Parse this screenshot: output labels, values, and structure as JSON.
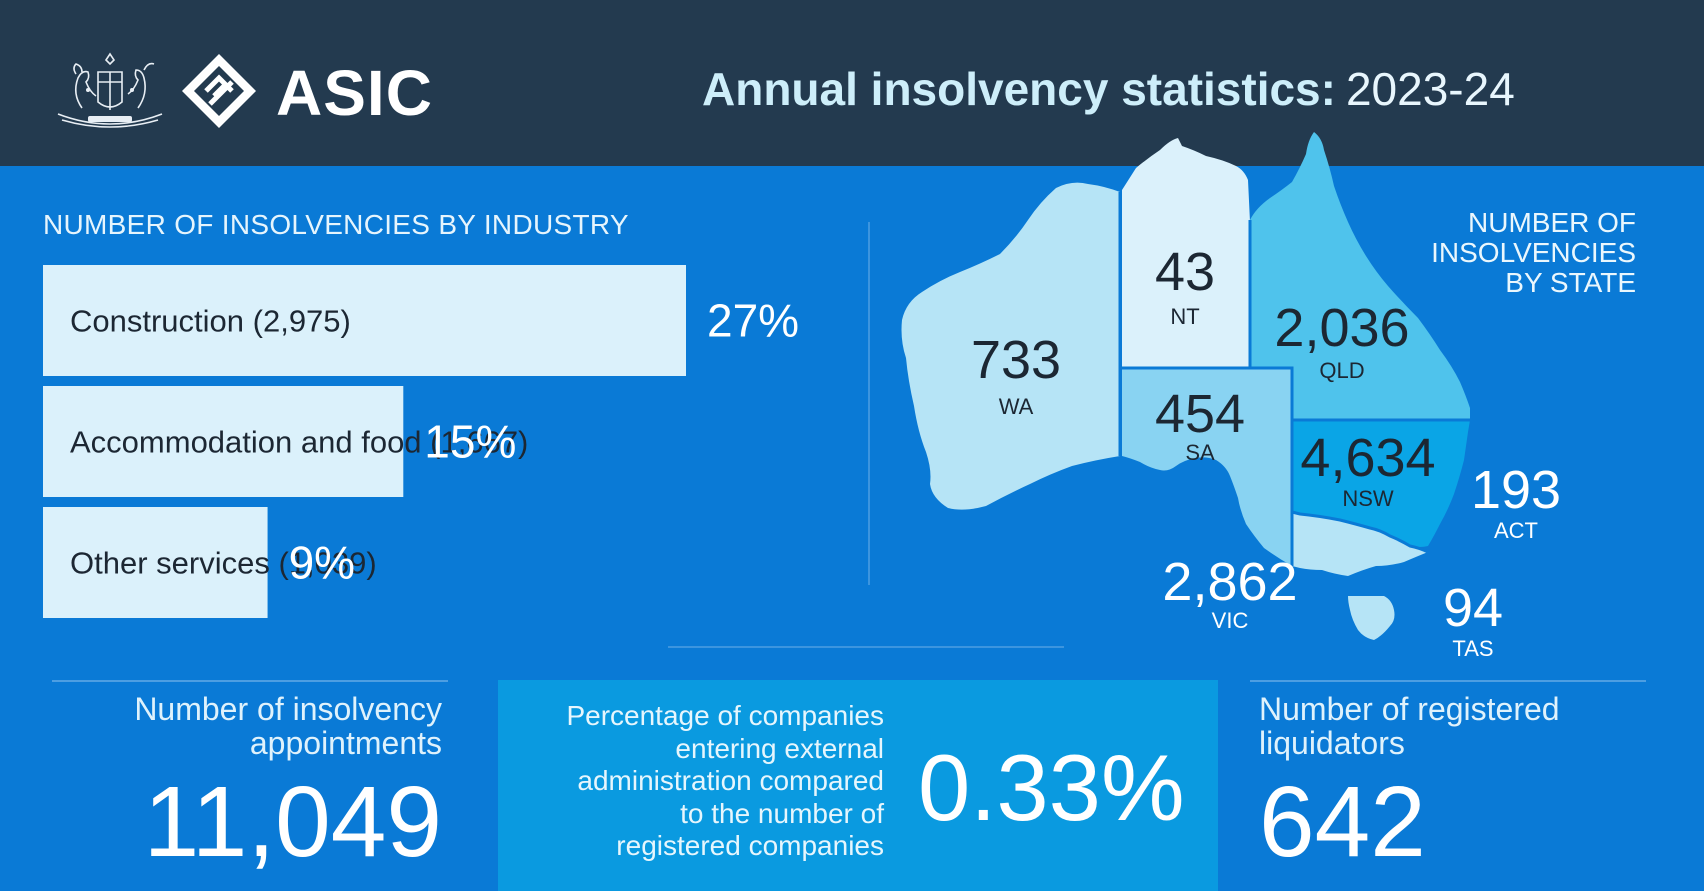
{
  "header": {
    "logo_text": "ASIC",
    "title_strong": "Annual insolvency statistics:",
    "title_year": "2023-24"
  },
  "colors": {
    "header_bg": "#233a4f",
    "main_bg": "#0a7ad6",
    "bar_fill": "#dbf1fb",
    "highlight_box": "#0a9ae0",
    "wa": "#b6e4f6",
    "nt": "#dbf1fb",
    "qld": "#4fc3ec",
    "sa": "#89d3f2",
    "nsw": "#0aa5e6",
    "vic": "#b6e4f6",
    "tas": "#b6e4f6"
  },
  "industry": {
    "heading": "NUMBER OF INSOLVENCIES BY INDUSTRY"
  },
  "states": {
    "heading_lines": [
      "NUMBER OF",
      "INSOLVENCIES",
      "BY STATE"
    ]
  },
  "stats": {
    "appointments_label": [
      "Number of insolvency",
      "appointments"
    ],
    "appointments_value": "11,049",
    "percentage_label": [
      "Percentage of companies",
      "entering external",
      "administration compared",
      "to the number of",
      "registered companies"
    ],
    "percentage_value": "0.33%",
    "liquidators_label": [
      "Number of registered",
      "liquidators"
    ],
    "liquidators_value": "642"
  },
  "chart_data": [
    {
      "type": "bar",
      "title": "NUMBER OF INSOLVENCIES BY INDUSTRY",
      "categories": [
        "Construction",
        "Accommodation and food",
        "Other services"
      ],
      "values": [
        2975,
        1667,
        1039
      ],
      "value_labels": [
        "(2,975)",
        "(1,667)",
        "(1,039)"
      ],
      "percent_labels": [
        "27%",
        "15%",
        "9%"
      ],
      "percent_values": [
        27,
        15,
        9
      ]
    },
    {
      "type": "table",
      "title": "NUMBER OF INSOLVENCIES BY STATE",
      "states": [
        {
          "code": "WA",
          "value": "733"
        },
        {
          "code": "NT",
          "value": "43"
        },
        {
          "code": "QLD",
          "value": "2,036"
        },
        {
          "code": "SA",
          "value": "454"
        },
        {
          "code": "NSW",
          "value": "4,634"
        },
        {
          "code": "ACT",
          "value": "193"
        },
        {
          "code": "VIC",
          "value": "2,862"
        },
        {
          "code": "TAS",
          "value": "94"
        }
      ]
    }
  ]
}
